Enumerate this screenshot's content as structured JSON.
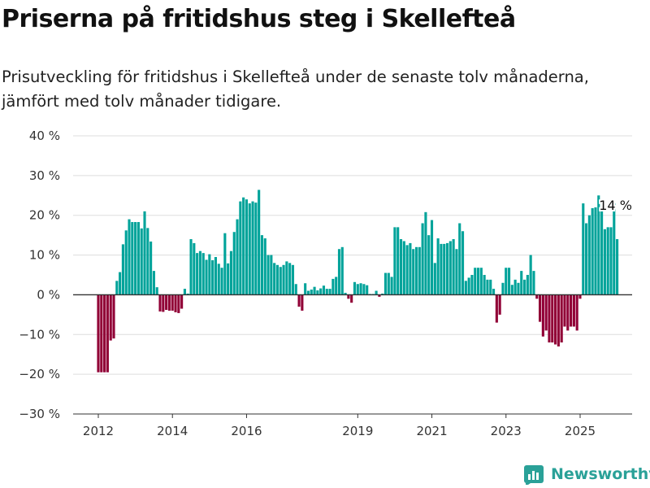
{
  "title": "Priserna på fritidshus steg i Skellefteå",
  "subtitle": "Prisutveckling för fritidshus i Skellefteå under de senaste tolv månaderna, jämfört med tolv månader tidigare.",
  "brand": "Newsworthy",
  "colors": {
    "positive": "#00a39a",
    "negative": "#910036",
    "grid": "#dddddd",
    "zero_line": "#333333",
    "brand": "#2aa198"
  },
  "chart_data": {
    "type": "bar",
    "ylabel": "",
    "xlabel": "",
    "ylim": [
      -30,
      40
    ],
    "y_ticks": [
      40,
      30,
      20,
      10,
      0,
      -10,
      -20,
      -30
    ],
    "y_tick_labels": [
      "40 %",
      "30 %",
      "20 %",
      "10 %",
      "0 %",
      "−10 %",
      "−20 %",
      "−30 %"
    ],
    "x_tick_labels": [
      "2012",
      "2014",
      "2016",
      "2019",
      "2021",
      "2023",
      "2025"
    ],
    "x_tick_positions": [
      2012,
      2014,
      2016,
      2019,
      2021,
      2023,
      2025
    ],
    "x_start": 2012,
    "x_step": 0.08333,
    "grid": true,
    "values": [
      -19.5,
      -19.5,
      -19.5,
      -19.5,
      -11.5,
      -11.0,
      3.5,
      5.7,
      12.7,
      16.2,
      19.0,
      18.3,
      18.3,
      18.3,
      16.7,
      21.0,
      16.8,
      13.4,
      6.0,
      1.9,
      -4.2,
      -4.3,
      -3.8,
      -4.0,
      -4.0,
      -4.4,
      -4.6,
      -3.5,
      1.5,
      0.3,
      14.0,
      13.0,
      10.5,
      11.0,
      10.5,
      8.8,
      10.2,
      8.7,
      9.5,
      7.8,
      6.8,
      15.5,
      7.9,
      11.0,
      15.8,
      19.0,
      23.5,
      24.5,
      24.0,
      23.0,
      23.5,
      23.2,
      26.4,
      15.0,
      14.2,
      10.0,
      10.0,
      8.0,
      7.5,
      7.0,
      7.5,
      8.4,
      8.0,
      7.5,
      2.7,
      -3.0,
      -4.0,
      2.9,
      1.0,
      1.3,
      2.0,
      1.1,
      1.6,
      2.3,
      1.5,
      1.5,
      4.0,
      4.5,
      11.5,
      12.0,
      0.5,
      -1.0,
      -2.0,
      3.2,
      2.7,
      2.9,
      2.7,
      2.4,
      0.2,
      0.2,
      1.0,
      -0.5,
      0.3,
      5.5,
      5.5,
      4.5,
      17.0,
      17.0,
      14.0,
      13.5,
      12.5,
      13.0,
      11.5,
      12.0,
      12.0,
      18.0,
      20.8,
      15.0,
      18.8,
      8.0,
      14.2,
      12.8,
      12.8,
      13.0,
      13.5,
      14.0,
      11.5,
      18.0,
      16.0,
      3.5,
      4.3,
      5.0,
      6.8,
      6.8,
      6.8,
      5.0,
      3.8,
      3.8,
      1.5,
      -7.0,
      -5.0,
      3.0,
      6.8,
      6.8,
      2.5,
      3.8,
      3.0,
      6.0,
      3.8,
      5.0,
      10.0,
      6.0,
      -1.0,
      -6.8,
      -10.5,
      -9.0,
      -12.0,
      -12.0,
      -12.5,
      -13.0,
      -12.0,
      -8.0,
      -9.0,
      -8.0,
      -8.0,
      -9.0,
      -1.0,
      23.0,
      18.0,
      20.0,
      21.8,
      22.0,
      25.0,
      21.5,
      16.5,
      17.0,
      17.0,
      23.0,
      14.0
    ],
    "annotation": {
      "text": "14 %",
      "target": "last"
    }
  }
}
